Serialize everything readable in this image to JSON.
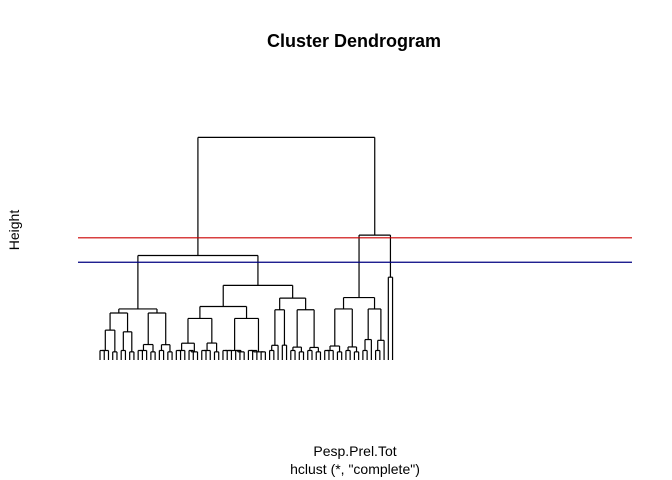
{
  "chart_data": {
    "type": "dendrogram",
    "title": "Cluster Dendrogram",
    "ylabel": "Height",
    "xlabel": "Pesp.Prel.Tot",
    "sub": "hclust (*, \"complete\")",
    "ylim": [
      0,
      10
    ],
    "axes_drawn": false,
    "leaf_labels_drawn": false,
    "colors": {
      "tree": "#000000",
      "cut_upper": "#cc0000",
      "cut_lower": "#000080"
    },
    "cut_lines": [
      {
        "height": 4.5,
        "color": "#cc0000"
      },
      {
        "height": 3.6,
        "color": "#000080"
      }
    ],
    "groups": [
      {
        "leaves": 9,
        "depth": 3.5,
        "height": 1.73
      },
      {
        "leaves": 9,
        "depth": 3.5,
        "height": 1.73
      },
      {
        "leaves": 11,
        "depth": 3.5,
        "height": 1.53
      },
      {
        "leaves": 11,
        "depth": 3.5,
        "height": 1.53
      },
      {
        "leaves": 5,
        "depth": 3.5,
        "height": 1.85
      },
      {
        "leaves": 8,
        "depth": 3.5,
        "height": 1.85
      },
      {
        "leaves": 9,
        "depth": 3.5,
        "height": 1.88
      },
      {
        "leaves": 6,
        "depth": 3.5,
        "height": 1.88
      },
      {
        "leaves": 2,
        "depth": 1,
        "height": 3.05
      }
    ],
    "merges": [
      {
        "left": "g0",
        "right": "g1",
        "height": 1.88
      },
      {
        "left": "g2",
        "right": "g3",
        "height": 1.97
      },
      {
        "left": "g4",
        "right": "g5",
        "height": 2.28
      },
      {
        "left": "n1",
        "right": "n2",
        "height": 2.75
      },
      {
        "left": "n0",
        "right": "n3",
        "height": 3.85
      },
      {
        "left": "g6",
        "right": "g7",
        "height": 2.3
      },
      {
        "left": "n5",
        "right": "g8",
        "height": 4.6
      },
      {
        "left": "n4",
        "right": "n6",
        "height": 8.2
      }
    ]
  }
}
